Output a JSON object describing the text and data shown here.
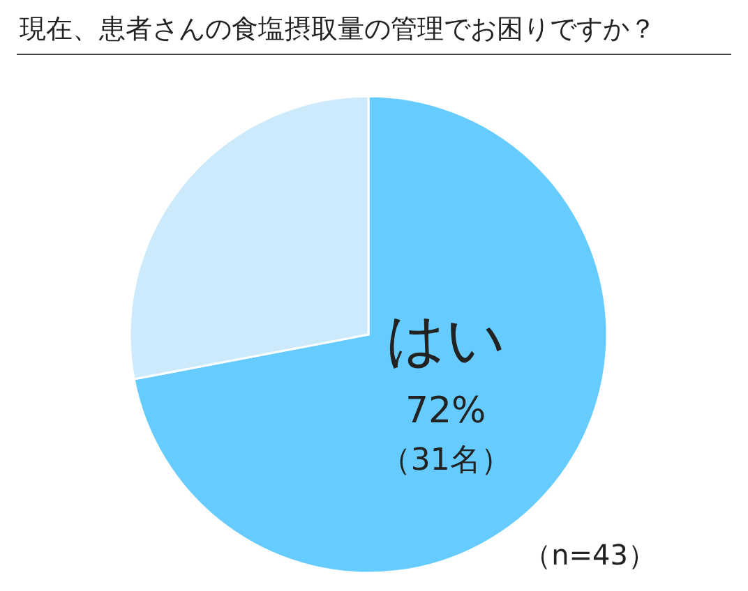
{
  "chart_data": {
    "type": "pie",
    "title": "現在、患者さんの食塩摂取量の管理でお困りですか？",
    "categories": [
      "はい",
      null
    ],
    "values": [
      72,
      28
    ],
    "colors": [
      "#66ccff",
      "#cceafc"
    ],
    "value_labels": [
      "72%",
      null
    ],
    "annotations": [
      "（31名）",
      "（n=43）"
    ]
  }
}
